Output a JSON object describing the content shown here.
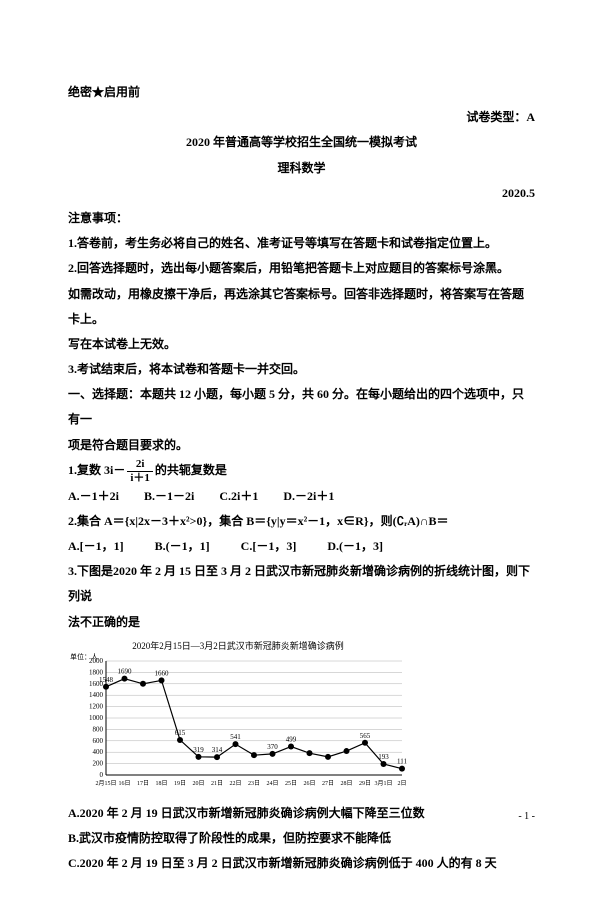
{
  "header": {
    "confidential": "绝密★启用前",
    "paper_type_label": "试卷类型：A",
    "exam_title": "2020 年普通高等学校招生全国统一模拟考试",
    "subject": "理科数学",
    "date": "2020.5"
  },
  "notice_title": "注意事项：",
  "notices": [
    "1.答卷前，考生务必将自己的姓名、准考证号等填写在答题卡和试卷指定位置上。",
    "2.回答选择题时，选出每小题答案后，用铅笔把答题卡上对应题目的答案标号涂黑。",
    "如需改动，用橡皮擦干净后，再选涂其它答案标号。回答非选择题时，将答案写在答题卡上。",
    "写在本试卷上无效。",
    "3.考试结束后，将本试卷和答题卡一并交回。"
  ],
  "section_heading_a": "一、选择题：本题共 12 小题，每小题 5 分，共 60 分。在每小题给出的四个选项中，只有一",
  "section_heading_b": "项是符合题目要求的。",
  "q1": {
    "stem_prefix": "1.复数 3i－",
    "frac_num": "2i",
    "frac_den": "i＋1",
    "stem_suffix": "的共轭复数是",
    "opts": [
      "A.－1＋2i",
      "B.－1－2i",
      "C.2i＋1",
      "D.－2i＋1"
    ]
  },
  "q2": {
    "stem": "2.集合 A＝{x|2x－3＋x²>0}，集合 B＝{y|y＝x²－1，x∈R}，则(∁ᵣA)∩B＝",
    "opts": [
      "A.[－1，1]",
      "B.(－1，1]",
      "C.[－1，3]",
      "D.(－1，3]"
    ]
  },
  "q3": {
    "stem_a": "3.下图是2020 年 2 月 15 日至 3 月 2 日武汉市新冠肺炎新增确诊病例的折线统计图，则下列说",
    "stem_b": "法不正确的是"
  },
  "chart": {
    "title": "2020年2月15日—3月2日武汉市新冠肺炎新增确诊病例",
    "ylabel": "单位：人",
    "ymin": 0,
    "ymax": 2000,
    "ytick_step": 200,
    "yticks": [
      0,
      200,
      400,
      600,
      800,
      1000,
      1200,
      1400,
      1600,
      1800,
      2000
    ],
    "categories": [
      "2月15日",
      "16日",
      "17日",
      "18日",
      "19日",
      "20日",
      "21日",
      "22日",
      "23日",
      "24日",
      "25日",
      "26日",
      "27日",
      "28日",
      "29日",
      "3月1日",
      "2日"
    ],
    "values": [
      1548,
      1690,
      1600,
      1660,
      615,
      319,
      314,
      541,
      348,
      370,
      499,
      383,
      318,
      420,
      565,
      193,
      111
    ],
    "labeled_points": {
      "0": "1548",
      "1": "1690",
      "3": "1660",
      "4": "615",
      "5": "319",
      "6": "314",
      "7": "541",
      "9": "370",
      "10": "499",
      "14": "565",
      "15": "193",
      "16": "111"
    },
    "line_color": "#000000",
    "marker_color": "#000000",
    "grid_color": "#b0b0b0",
    "background_color": "#ffffff",
    "marker_size": 3,
    "line_width": 1.2,
    "label_fontsize": 7,
    "tick_fontsize": 7
  },
  "q3_choices": [
    "A.2020 年 2 月 19 日武汉市新增新冠肺炎确诊病例大幅下降至三位数",
    "B.武汉市疫情防控取得了阶段性的成果，但防控要求不能降低",
    "C.2020 年 2 月 19 日至 3 月 2 日武汉市新增新冠肺炎确诊病例低于 400 人的有 8 天"
  ],
  "page_number": "- 1 -"
}
